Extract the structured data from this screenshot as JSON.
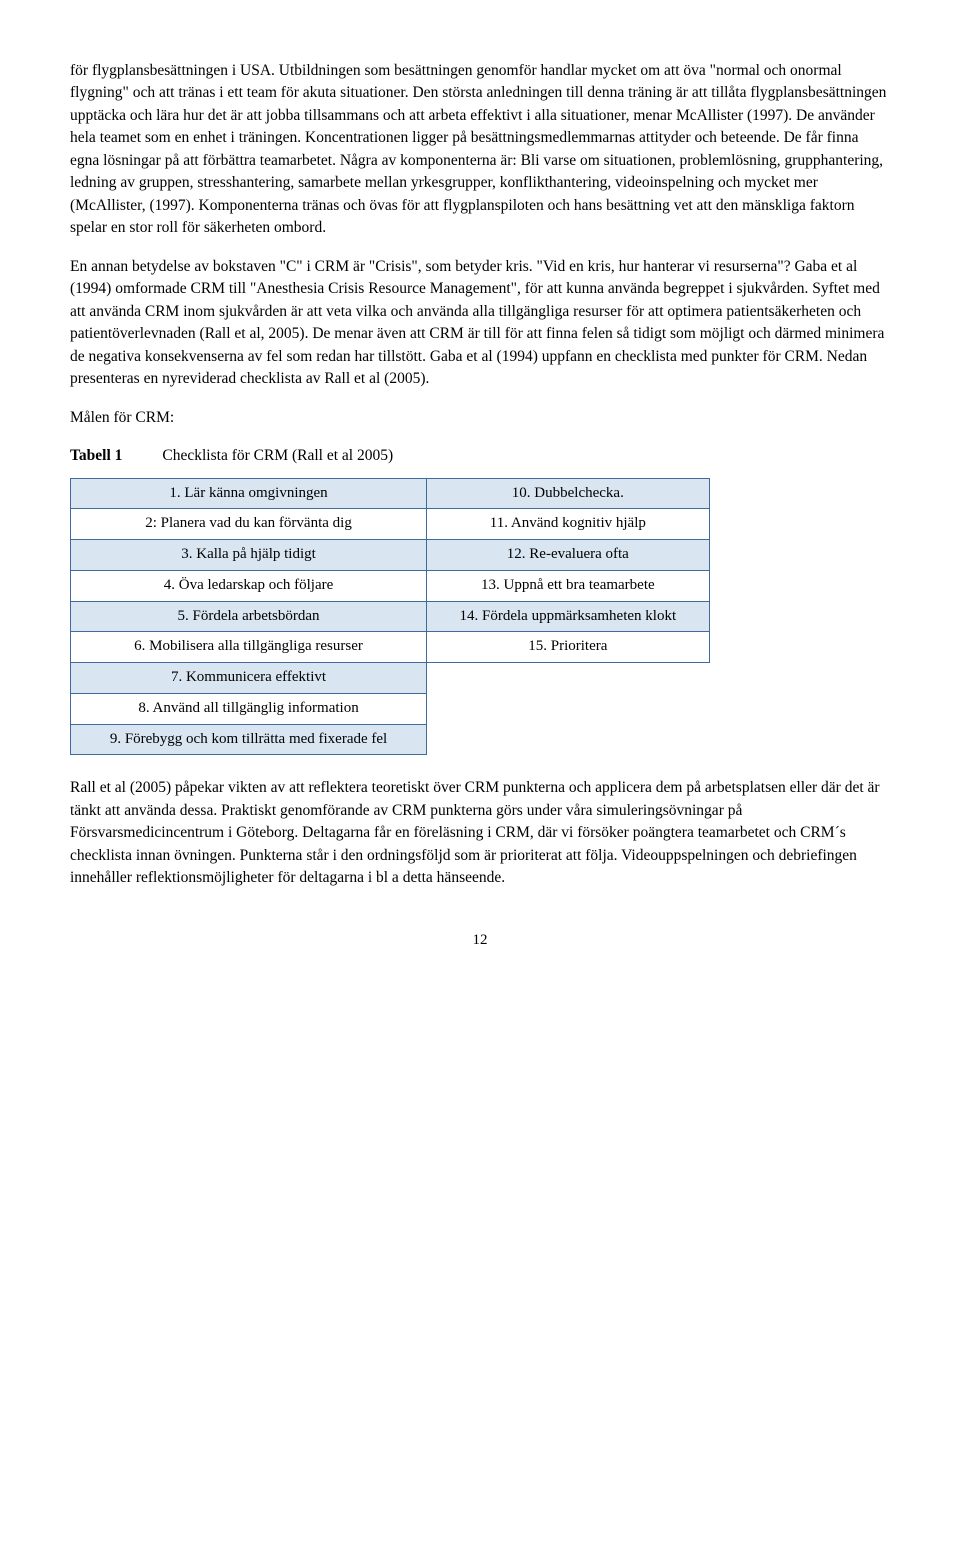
{
  "para1": "för flygplansbesättningen i USA. Utbildningen som besättningen genomför handlar mycket om att öva \"normal och onormal flygning\" och att tränas i ett team för akuta situationer. Den största anledningen till denna träning är att tillåta flygplansbesättningen upptäcka och lära hur det är att jobba tillsammans och att arbeta effektivt i alla situationer, menar McAllister (1997). De använder hela teamet som en enhet i träningen. Koncentrationen ligger på besättningsmedlemmarnas attityder och beteende. De får finna egna lösningar på att förbättra teamarbetet. Några av komponenterna är: Bli varse om situationen, problemlösning, grupphantering, ledning av gruppen, stresshantering, samarbete mellan yrkesgrupper, konflikthantering, videoinspelning och mycket mer (McAllister, (1997). Komponenterna tränas och övas för att flygplanspiloten och hans besättning vet att den mänskliga faktorn spelar en stor roll för säkerheten ombord.",
  "para2": "En annan betydelse av bokstaven \"C\" i CRM är \"Crisis\", som betyder kris. \"Vid en kris, hur hanterar vi resurserna\"? Gaba et al (1994) omformade CRM till \"Anesthesia Crisis Resource Management\", för att kunna använda begreppet i sjukvården. Syftet med att använda CRM inom sjukvården är att veta vilka och använda alla tillgängliga resurser för att optimera patientsäkerheten och patientöverlevnaden (Rall et al, 2005). De menar även att CRM är till för att finna felen så tidigt som möjligt och därmed minimera de negativa konsekvenserna av fel som redan har tillstött. Gaba et al (1994) uppfann en checklista med punkter för CRM. Nedan presenteras en nyreviderad checklista av Rall et al (2005).",
  "para3": "Målen för CRM:",
  "tableLabel": "Tabell 1",
  "tableCaption": "Checklista för CRM (Rall et al 2005)",
  "crmTable": {
    "rows": [
      {
        "left": "1. Lär känna omgivningen",
        "right": "10. Dubbelchecka.",
        "shade": true
      },
      {
        "left": "2: Planera vad du kan förvänta dig",
        "right": "11. Använd kognitiv hjälp",
        "shade": false
      },
      {
        "left": "3. Kalla på hjälp tidigt",
        "right": "12. Re-evaluera ofta",
        "shade": true
      },
      {
        "left": "4. Öva ledarskap och följare",
        "right": "13. Uppnå ett bra teamarbete",
        "shade": false
      },
      {
        "left": "5. Fördela arbetsbördan",
        "right": "14. Fördela uppmärksamheten klokt",
        "shade": true
      },
      {
        "left": "6. Mobilisera alla tillgängliga resurser",
        "right": "15. Prioritera",
        "shade": false
      },
      {
        "left": "7. Kommunicera effektivt",
        "right": "",
        "shade": true
      },
      {
        "left": "8. Använd all tillgänglig information",
        "right": "",
        "shade": false
      },
      {
        "left": "9. Förebygg och kom tillrätta med fixerade fel",
        "right": "",
        "shade": true
      }
    ],
    "borderColor": "#3d6b9a",
    "shadeColor": "#d9e5f1",
    "plainColor": "#ffffff"
  },
  "para4": "Rall et al (2005) påpekar vikten av att reflektera teoretiskt över CRM punkterna och applicera dem på arbetsplatsen eller där det är tänkt att använda dessa. Praktiskt genomförande av CRM punkterna görs under våra simuleringsövningar på Försvarsmedicincentrum i Göteborg. Deltagarna får en föreläsning i CRM, där vi försöker poängtera teamarbetet och CRM´s checklista innan övningen. Punkterna står i den ordningsföljd som är prioriterat att följa. Videouppspelningen och debriefingen innehåller reflektionsmöjligheter för deltagarna i bl a detta hänseende.",
  "pageNumber": "12"
}
